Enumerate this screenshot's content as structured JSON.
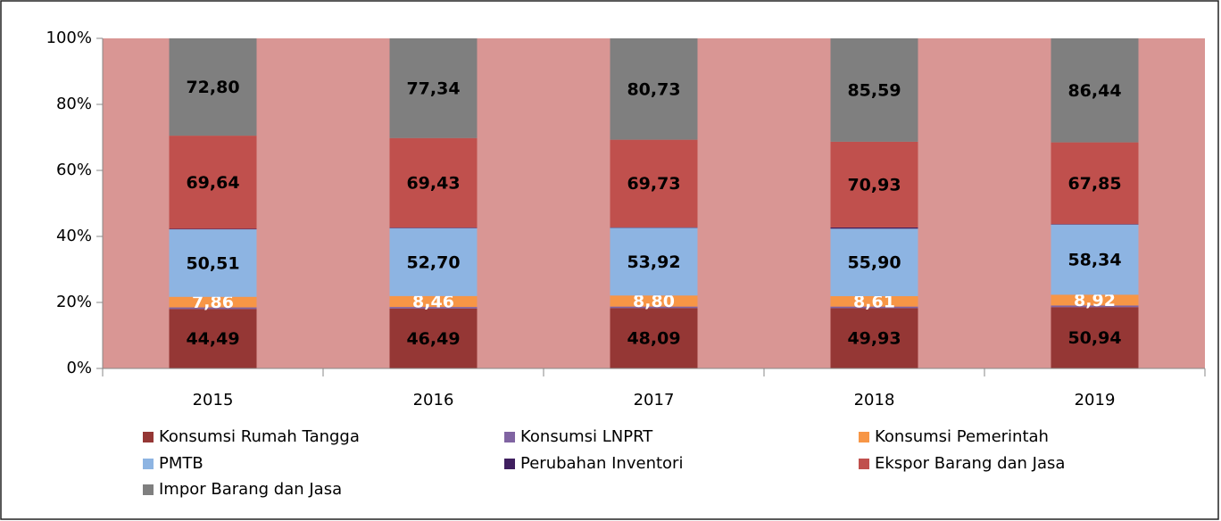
{
  "chart_data": {
    "type": "bar",
    "stacking": "percent",
    "categories": [
      "2015",
      "2016",
      "2017",
      "2018",
      "2019"
    ],
    "series": [
      {
        "name": "Konsumsi Rumah Tangga",
        "color": "#953735",
        "values": [
          44.49,
          46.49,
          48.09,
          49.93,
          50.94
        ],
        "value_labels": [
          "44,49",
          "46,49",
          "48,09",
          "49,93",
          "50,94"
        ],
        "label_color": "#000000"
      },
      {
        "name": "Konsumsi LNPRT",
        "color": "#8064a2",
        "values": [
          1.2,
          1.2,
          1.2,
          1.3,
          1.4
        ]
      },
      {
        "name": "Konsumsi Pemerintah",
        "color": "#f79646",
        "values": [
          7.86,
          8.46,
          8.8,
          8.61,
          8.92
        ],
        "value_labels": [
          "7,86",
          "8,46",
          "8,80",
          "8,61",
          "8,92"
        ],
        "label_color": "#ffffff"
      },
      {
        "name": "PMTB",
        "color": "#8db4e2",
        "values": [
          50.51,
          52.7,
          53.92,
          55.9,
          58.34
        ],
        "value_labels": [
          "50,51",
          "52,70",
          "53,92",
          "55,90",
          "58,34"
        ],
        "label_color": "#000000"
      },
      {
        "name": "Perubahan Inventori",
        "color": "#3f1f5f",
        "values": [
          0.4,
          0.4,
          0.4,
          1.0,
          0.4
        ]
      },
      {
        "name": "Ekspor Barang dan Jasa",
        "color": "#c0504d",
        "values": [
          69.64,
          69.43,
          69.73,
          70.93,
          67.85
        ],
        "value_labels": [
          "69,64",
          "69,43",
          "69,73",
          "70,93",
          "67,85"
        ],
        "label_color": "#000000"
      },
      {
        "name": "Impor Barang dan Jasa",
        "color": "#7f7f7f",
        "values": [
          72.8,
          77.34,
          80.73,
          85.59,
          86.44
        ],
        "value_labels": [
          "72,80",
          "77,34",
          "80,73",
          "85,59",
          "86,44"
        ],
        "label_color": "#000000"
      }
    ],
    "ylim": [
      0,
      100
    ],
    "yticks": [
      {
        "value": 0,
        "label": "0%"
      },
      {
        "value": 20,
        "label": "20%"
      },
      {
        "value": 40,
        "label": "40%"
      },
      {
        "value": 60,
        "label": "60%"
      },
      {
        "value": 80,
        "label": "80%"
      },
      {
        "value": 100,
        "label": "100%"
      }
    ],
    "plot_background": "#d99694",
    "legend": "bottom"
  }
}
